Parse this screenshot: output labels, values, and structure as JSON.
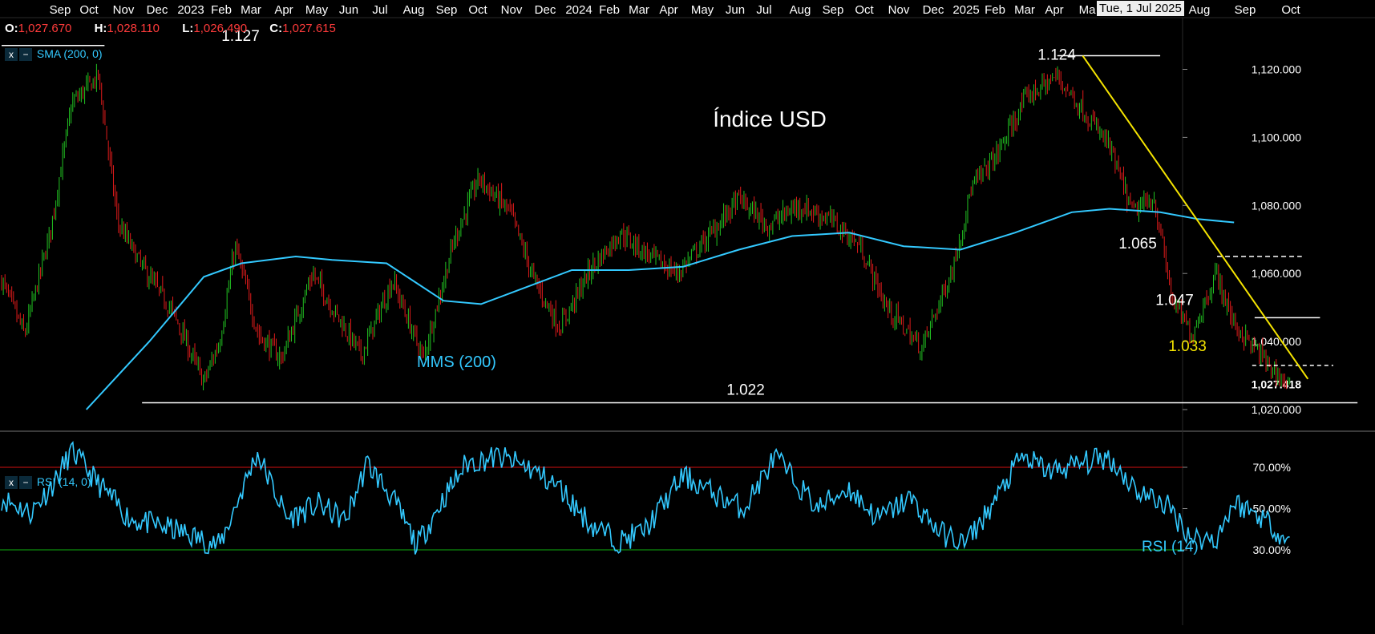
{
  "ohlc": {
    "open_label": "O:",
    "open": "1,027.670",
    "high_label": "H:",
    "high": "1,028.110",
    "low_label": "L:",
    "low": "1,026.490",
    "close_label": "C:",
    "close": "1,027.615"
  },
  "indicators": {
    "sma_tag": "SMA (200, 0)",
    "rsi_tag": "RSI (14, 0)",
    "close_button": "x",
    "minimize_button": "−"
  },
  "crosshair_date": "Tue, 1 Jul 2025",
  "colors": {
    "background": "#000000",
    "up_candle": "#22c322",
    "down_candle": "#e01b1b",
    "sma": "#33c9ff",
    "rsi": "#33c9ff",
    "trendline": "#f5e400",
    "overbought": "#d01010",
    "oversold": "#10b010"
  },
  "chart_data": [
    {
      "type": "candlestick",
      "title": "Índice USD",
      "x_tick_labels": [
        "Sep",
        "Oct",
        "Nov",
        "Dec",
        "2023",
        "Feb",
        "Mar",
        "Apr",
        "May",
        "Jun",
        "Jul",
        "Aug",
        "Sep",
        "Oct",
        "Nov",
        "Dec",
        "2024",
        "Feb",
        "Mar",
        "Apr",
        "May",
        "Jun",
        "Jul",
        "Aug",
        "Sep",
        "Oct",
        "Nov",
        "Dec",
        "2025",
        "Feb",
        "Mar",
        "Apr",
        "Ma",
        "Aug",
        "Sep",
        "Oct"
      ],
      "y_ticks": [
        1020,
        1040,
        1060,
        1080,
        1100,
        1120
      ],
      "y_tick_labels": [
        "1,020.000",
        "1,040.000",
        "1,060.000",
        "1,080.000",
        "1,100.000",
        "1,120.000"
      ],
      "ylim": [
        1013,
        1131
      ],
      "last_price_label": "1,027.418",
      "close_path": {
        "x": [
          "2022-08-01",
          "2022-08-20",
          "2022-09-10",
          "2022-09-28",
          "2022-10-20",
          "2022-11-05",
          "2022-11-25",
          "2022-12-20",
          "2023-01-15",
          "2023-01-28",
          "2023-02-10",
          "2023-03-01",
          "2023-03-20",
          "2023-04-15",
          "2023-05-01",
          "2023-05-25",
          "2023-06-20",
          "2023-07-15",
          "2023-08-10",
          "2023-08-30",
          "2023-09-25",
          "2023-10-15",
          "2023-11-05",
          "2023-11-30",
          "2023-12-25",
          "2024-01-15",
          "2024-02-10",
          "2024-03-05",
          "2024-04-01",
          "2024-04-25",
          "2024-05-20",
          "2024-06-15",
          "2024-07-10",
          "2024-08-01",
          "2024-08-30",
          "2024-09-25",
          "2024-10-10",
          "2024-10-31",
          "2024-11-25",
          "2024-12-20",
          "2025-01-10",
          "2025-01-31",
          "2025-02-20",
          "2025-03-10",
          "2025-03-25",
          "2025-04-10",
          "2025-04-30",
          "2025-05-15",
          "2025-06-01",
          "2025-06-20",
          "2025-07-01"
        ],
        "y": [
          1058,
          1042,
          1072,
          1110,
          1118,
          1075,
          1062,
          1049,
          1028,
          1040,
          1068,
          1042,
          1035,
          1060,
          1050,
          1036,
          1058,
          1035,
          1070,
          1088,
          1078,
          1058,
          1044,
          1061,
          1072,
          1066,
          1060,
          1070,
          1082,
          1074,
          1080,
          1076,
          1068,
          1050,
          1038,
          1062,
          1085,
          1095,
          1112,
          1118,
          1108,
          1098,
          1078,
          1082,
          1052,
          1042,
          1060,
          1045,
          1038,
          1030,
          1027
        ]
      },
      "sma_line": {
        "name": "MMS (200)",
        "x": [
          "2022-10-10",
          "2022-12-01",
          "2023-01-15",
          "2023-02-15",
          "2023-04-01",
          "2023-05-01",
          "2023-06-15",
          "2023-08-01",
          "2023-09-01",
          "2023-10-01",
          "2023-11-15",
          "2024-01-01",
          "2024-02-15",
          "2024-04-01",
          "2024-05-15",
          "2024-07-01",
          "2024-08-15",
          "2024-10-01",
          "2024-11-15",
          "2025-01-01",
          "2025-02-01",
          "2025-03-15",
          "2025-04-15",
          "2025-05-15"
        ],
        "y": [
          1020,
          1040,
          1059,
          1063,
          1065,
          1064,
          1063,
          1052,
          1051,
          1055,
          1061,
          1061,
          1062,
          1067,
          1071,
          1072,
          1068,
          1067,
          1072,
          1078,
          1079,
          1078,
          1076,
          1075
        ]
      },
      "levels": [
        {
          "label": "1.127",
          "value": 1127,
          "from": "2022-08-01",
          "to": "2022-10-25"
        },
        {
          "label": "1.124",
          "value": 1124,
          "from": "2024-12-20",
          "to": "2025-03-15"
        },
        {
          "label": "1.065",
          "value": 1065,
          "from": "2025-05-01",
          "to": "2025-07-10"
        },
        {
          "label": "1.047",
          "value": 1047,
          "from": "2025-06-01",
          "to": "2025-07-25"
        },
        {
          "label": "1.033",
          "value": 1033,
          "from": "2025-05-30",
          "to": "2025-08-05"
        },
        {
          "label": "1.022",
          "value": 1022,
          "from": "2022-11-25",
          "to": "2025-08-25"
        }
      ],
      "trendline": {
        "x": [
          "2025-01-10",
          "2025-07-15"
        ],
        "y": [
          1124,
          1029
        ]
      }
    },
    {
      "type": "line",
      "series": [
        {
          "name": "RSI (14)"
        }
      ],
      "y_ticks": [
        30,
        50,
        70
      ],
      "y_tick_labels": [
        "30.00%",
        "50.00%",
        "70.00%"
      ],
      "ylim": [
        20,
        85
      ],
      "overbought": 70,
      "oversold": 30,
      "x": [
        "2022-08-01",
        "2022-08-25",
        "2022-09-15",
        "2022-09-28",
        "2022-10-20",
        "2022-11-15",
        "2022-12-20",
        "2023-01-28",
        "2023-02-15",
        "2023-02-28",
        "2023-03-25",
        "2023-04-20",
        "2023-05-12",
        "2023-05-30",
        "2023-06-20",
        "2023-07-10",
        "2023-08-01",
        "2023-08-20",
        "2023-09-15",
        "2023-10-10",
        "2023-11-05",
        "2023-12-01",
        "2023-12-25",
        "2024-01-15",
        "2024-02-15",
        "2024-03-15",
        "2024-04-05",
        "2024-05-01",
        "2024-06-05",
        "2024-06-30",
        "2024-07-25",
        "2024-08-20",
        "2024-09-15",
        "2024-10-05",
        "2024-10-30",
        "2024-11-20",
        "2024-12-15",
        "2025-01-10",
        "2025-01-31",
        "2025-02-25",
        "2025-03-20",
        "2025-04-10",
        "2025-04-30",
        "2025-05-15",
        "2025-06-10",
        "2025-07-01"
      ],
      "y": [
        55,
        48,
        64,
        78,
        62,
        45,
        40,
        32,
        58,
        77,
        45,
        52,
        44,
        72,
        55,
        32,
        55,
        72,
        75,
        70,
        60,
        42,
        34,
        40,
        66,
        56,
        50,
        75,
        50,
        60,
        45,
        55,
        38,
        33,
        54,
        75,
        68,
        72,
        75,
        58,
        52,
        36,
        35,
        53,
        45,
        32
      ]
    }
  ]
}
